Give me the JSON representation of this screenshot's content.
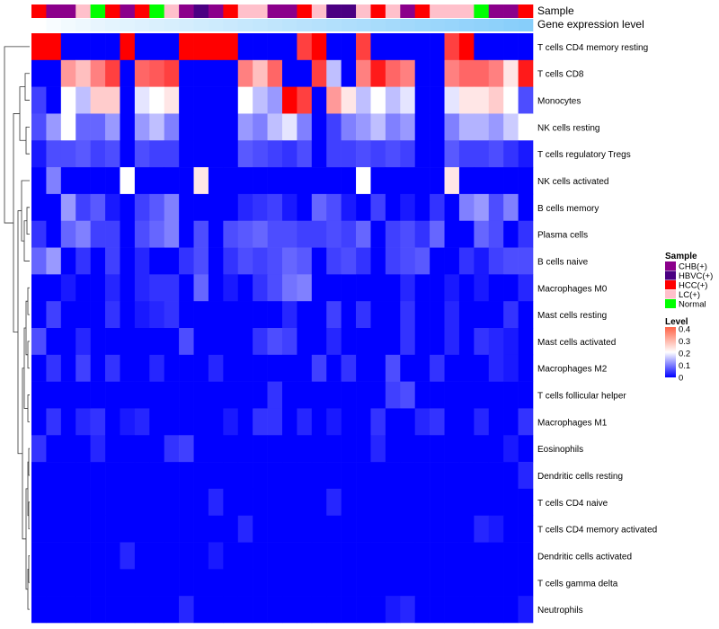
{
  "chart_data": {
    "type": "heatmap",
    "annotation_labels": {
      "sample": "Sample",
      "gene": "Gene expression level"
    },
    "rows": [
      "T cells CD4 memory resting",
      "T cells CD8",
      "Monocytes",
      "NK cells resting",
      "T cells regulatory  Tregs",
      "NK cells activated",
      "B cells memory",
      "Plasma cells",
      "B cells naive",
      "Macrophages M0",
      "Mast cells resting",
      "Mast cells activated",
      "Macrophages M2",
      "T cells follicular helper",
      "Macrophages M1",
      "Eosinophils",
      "Dendritic cells resting",
      "T cells CD4 naive",
      "T cells CD4 memory activated",
      "Dendritic cells activated",
      "T cells gamma delta",
      "Neutrophils"
    ],
    "sample_groups": [
      "HCC(+)",
      "CHB(+)",
      "CHB(+)",
      "LC(+)",
      "Normal",
      "HCC(+)",
      "CHB(+)",
      "HCC(+)",
      "Normal",
      "LC(+)",
      "CHB(+)",
      "HBVC(+)",
      "CHB(+)",
      "HCC(+)",
      "LC(+)",
      "LC(+)",
      "CHB(+)",
      "CHB(+)",
      "HCC(+)",
      "LC(+)",
      "HBVC(+)",
      "HBVC(+)",
      "LC(+)",
      "HCC(+)",
      "LC(+)",
      "CHB(+)",
      "HCC(+)",
      "LC(+)",
      "LC(+)",
      "LC(+)",
      "Normal",
      "CHB(+)",
      "CHB(+)",
      "HCC(+)"
    ],
    "gene_level_bar": [
      0.38,
      0.36,
      0.34,
      0.33,
      0.31,
      0.3,
      0.29,
      0.28,
      0.27,
      0.26,
      0.25,
      0.24,
      0.23,
      0.22,
      0.21,
      0.2,
      0.19,
      0.18,
      0.17,
      0.16,
      0.15,
      0.14,
      0.13,
      0.12,
      0.11,
      0.1,
      0.09,
      0.08,
      0.07,
      0.06,
      0.05,
      0.04,
      0.03,
      0.02
    ],
    "values": [
      [
        0.4,
        0.4,
        0.0,
        0.0,
        0.0,
        0.0,
        0.4,
        0.0,
        0.0,
        0.0,
        0.4,
        0.4,
        0.4,
        0.4,
        0.0,
        0.0,
        0.0,
        0.0,
        0.35,
        0.4,
        0.0,
        0.0,
        0.35,
        0.0,
        0.0,
        0.0,
        0.0,
        0.0,
        0.35,
        0.4,
        0.0,
        0.0,
        0.0,
        0.0
      ],
      [
        0.0,
        0.0,
        0.28,
        0.25,
        0.3,
        0.35,
        0.0,
        0.32,
        0.33,
        0.35,
        0.0,
        0.0,
        0.0,
        0.0,
        0.3,
        0.25,
        0.32,
        0.0,
        0.0,
        0.35,
        0.15,
        0.0,
        0.3,
        0.38,
        0.32,
        0.3,
        0.0,
        0.0,
        0.3,
        0.32,
        0.32,
        0.3,
        0.22,
        0.38
      ],
      [
        0.05,
        0.0,
        0.2,
        0.15,
        0.24,
        0.24,
        0.0,
        0.18,
        0.2,
        0.22,
        0.0,
        0.0,
        0.0,
        0.0,
        0.2,
        0.15,
        0.12,
        0.4,
        0.35,
        0.0,
        0.28,
        0.22,
        0.15,
        0.2,
        0.15,
        0.18,
        0.0,
        0.0,
        0.18,
        0.22,
        0.22,
        0.24,
        0.2,
        0.06
      ],
      [
        0.06,
        0.12,
        0.2,
        0.08,
        0.08,
        0.12,
        0.0,
        0.12,
        0.15,
        0.1,
        0.0,
        0.0,
        0.0,
        0.0,
        0.12,
        0.1,
        0.15,
        0.18,
        0.1,
        0.0,
        0.05,
        0.1,
        0.12,
        0.15,
        0.1,
        0.12,
        0.0,
        0.0,
        0.1,
        0.14,
        0.14,
        0.12,
        0.16,
        0.2
      ],
      [
        0.02,
        0.06,
        0.06,
        0.07,
        0.05,
        0.06,
        0.0,
        0.06,
        0.05,
        0.05,
        0.0,
        0.0,
        0.0,
        0.0,
        0.07,
        0.06,
        0.05,
        0.04,
        0.06,
        0.0,
        0.05,
        0.05,
        0.06,
        0.05,
        0.06,
        0.05,
        0.0,
        0.0,
        0.07,
        0.05,
        0.05,
        0.06,
        0.04,
        0.02
      ],
      [
        0.0,
        0.1,
        0.0,
        0.0,
        0.0,
        0.0,
        0.2,
        0.0,
        0.0,
        0.0,
        0.0,
        0.22,
        0.0,
        0.0,
        0.0,
        0.0,
        0.0,
        0.0,
        0.0,
        0.0,
        0.0,
        0.0,
        0.2,
        0.0,
        0.0,
        0.0,
        0.0,
        0.0,
        0.22,
        0.0,
        0.0,
        0.0,
        0.0,
        0.0
      ],
      [
        0.0,
        0.0,
        0.12,
        0.05,
        0.07,
        0.02,
        0.0,
        0.05,
        0.07,
        0.1,
        0.0,
        0.0,
        0.0,
        0.0,
        0.03,
        0.04,
        0.05,
        0.02,
        0.0,
        0.08,
        0.06,
        0.02,
        0.0,
        0.05,
        0.0,
        0.02,
        0.0,
        0.04,
        0.0,
        0.1,
        0.12,
        0.06,
        0.1,
        0.0
      ],
      [
        0.04,
        0.0,
        0.08,
        0.1,
        0.05,
        0.05,
        0.0,
        0.06,
        0.08,
        0.1,
        0.0,
        0.06,
        0.0,
        0.06,
        0.07,
        0.08,
        0.06,
        0.06,
        0.05,
        0.05,
        0.06,
        0.05,
        0.08,
        0.0,
        0.05,
        0.06,
        0.04,
        0.08,
        0.0,
        0.0,
        0.08,
        0.06,
        0.0,
        0.04
      ],
      [
        0.08,
        0.12,
        0.0,
        0.04,
        0.0,
        0.05,
        0.0,
        0.03,
        0.0,
        0.0,
        0.04,
        0.06,
        0.0,
        0.04,
        0.06,
        0.05,
        0.06,
        0.08,
        0.07,
        0.0,
        0.05,
        0.06,
        0.04,
        0.0,
        0.05,
        0.06,
        0.07,
        0.0,
        0.0,
        0.04,
        0.02,
        0.05,
        0.06,
        0.06
      ],
      [
        0.0,
        0.0,
        0.02,
        0.0,
        0.0,
        0.03,
        0.0,
        0.03,
        0.04,
        0.04,
        0.0,
        0.08,
        0.0,
        0.02,
        0.0,
        0.04,
        0.06,
        0.09,
        0.1,
        0.0,
        0.0,
        0.0,
        0.0,
        0.0,
        0.0,
        0.03,
        0.0,
        0.0,
        0.02,
        0.0,
        0.02,
        0.0,
        0.0,
        0.03
      ],
      [
        0.0,
        0.05,
        0.0,
        0.0,
        0.0,
        0.04,
        0.0,
        0.02,
        0.03,
        0.04,
        0.0,
        0.0,
        0.0,
        0.0,
        0.0,
        0.0,
        0.0,
        0.03,
        0.0,
        0.0,
        0.05,
        0.0,
        0.04,
        0.0,
        0.0,
        0.04,
        0.0,
        0.0,
        0.03,
        0.0,
        0.0,
        0.0,
        0.04,
        0.0
      ],
      [
        0.06,
        0.0,
        0.0,
        0.03,
        0.0,
        0.0,
        0.0,
        0.0,
        0.0,
        0.0,
        0.06,
        0.0,
        0.0,
        0.0,
        0.0,
        0.04,
        0.06,
        0.05,
        0.0,
        0.0,
        0.03,
        0.0,
        0.0,
        0.0,
        0.0,
        0.04,
        0.0,
        0.0,
        0.03,
        0.0,
        0.04,
        0.03,
        0.02,
        0.0
      ],
      [
        0.0,
        0.04,
        0.0,
        0.05,
        0.0,
        0.04,
        0.0,
        0.0,
        0.03,
        0.0,
        0.0,
        0.0,
        0.03,
        0.0,
        0.0,
        0.0,
        0.0,
        0.0,
        0.0,
        0.05,
        0.0,
        0.04,
        0.0,
        0.0,
        0.06,
        0.0,
        0.0,
        0.04,
        0.0,
        0.0,
        0.0,
        0.03,
        0.02,
        0.0
      ],
      [
        0.0,
        0.0,
        0.0,
        0.0,
        0.0,
        0.0,
        0.0,
        0.0,
        0.0,
        0.0,
        0.0,
        0.0,
        0.0,
        0.0,
        0.0,
        0.0,
        0.04,
        0.0,
        0.0,
        0.0,
        0.0,
        0.0,
        0.0,
        0.0,
        0.05,
        0.06,
        0.0,
        0.0,
        0.0,
        0.0,
        0.0,
        0.0,
        0.0,
        0.0
      ],
      [
        0.0,
        0.04,
        0.0,
        0.03,
        0.04,
        0.0,
        0.02,
        0.03,
        0.0,
        0.0,
        0.0,
        0.0,
        0.0,
        0.02,
        0.0,
        0.04,
        0.04,
        0.0,
        0.03,
        0.0,
        0.02,
        0.0,
        0.0,
        0.04,
        0.0,
        0.0,
        0.03,
        0.04,
        0.0,
        0.0,
        0.03,
        0.0,
        0.0,
        0.04
      ],
      [
        0.04,
        0.0,
        0.0,
        0.0,
        0.03,
        0.0,
        0.0,
        0.0,
        0.0,
        0.04,
        0.05,
        0.0,
        0.0,
        0.0,
        0.0,
        0.0,
        0.0,
        0.0,
        0.0,
        0.0,
        0.0,
        0.0,
        0.0,
        0.03,
        0.0,
        0.0,
        0.0,
        0.0,
        0.0,
        0.0,
        0.0,
        0.0,
        0.02,
        0.0
      ],
      [
        0.0,
        0.0,
        0.0,
        0.0,
        0.0,
        0.0,
        0.0,
        0.0,
        0.0,
        0.0,
        0.0,
        0.0,
        0.0,
        0.0,
        0.0,
        0.0,
        0.0,
        0.0,
        0.0,
        0.0,
        0.0,
        0.0,
        0.0,
        0.0,
        0.0,
        0.0,
        0.0,
        0.0,
        0.0,
        0.0,
        0.0,
        0.0,
        0.0,
        0.03
      ],
      [
        0.0,
        0.0,
        0.0,
        0.0,
        0.0,
        0.0,
        0.0,
        0.0,
        0.0,
        0.0,
        0.0,
        0.0,
        0.03,
        0.0,
        0.0,
        0.0,
        0.0,
        0.0,
        0.0,
        0.0,
        0.03,
        0.0,
        0.0,
        0.0,
        0.0,
        0.0,
        0.0,
        0.0,
        0.0,
        0.0,
        0.0,
        0.0,
        0.0,
        0.0
      ],
      [
        0.0,
        0.0,
        0.0,
        0.0,
        0.0,
        0.0,
        0.0,
        0.0,
        0.0,
        0.0,
        0.0,
        0.0,
        0.0,
        0.0,
        0.03,
        0.0,
        0.0,
        0.0,
        0.0,
        0.0,
        0.0,
        0.0,
        0.0,
        0.0,
        0.0,
        0.0,
        0.0,
        0.0,
        0.0,
        0.0,
        0.03,
        0.02,
        0.0,
        0.0
      ],
      [
        0.0,
        0.0,
        0.0,
        0.0,
        0.0,
        0.0,
        0.03,
        0.0,
        0.0,
        0.0,
        0.0,
        0.0,
        0.02,
        0.0,
        0.0,
        0.0,
        0.0,
        0.0,
        0.0,
        0.0,
        0.0,
        0.0,
        0.0,
        0.0,
        0.0,
        0.0,
        0.0,
        0.0,
        0.0,
        0.0,
        0.0,
        0.0,
        0.0,
        0.0
      ],
      [
        0.0,
        0.0,
        0.0,
        0.0,
        0.0,
        0.0,
        0.0,
        0.0,
        0.0,
        0.0,
        0.0,
        0.0,
        0.0,
        0.0,
        0.0,
        0.0,
        0.0,
        0.0,
        0.0,
        0.0,
        0.0,
        0.0,
        0.0,
        0.0,
        0.0,
        0.0,
        0.0,
        0.0,
        0.0,
        0.0,
        0.0,
        0.0,
        0.0,
        0.0
      ],
      [
        0.0,
        0.0,
        0.0,
        0.0,
        0.0,
        0.0,
        0.0,
        0.0,
        0.0,
        0.0,
        0.03,
        0.0,
        0.0,
        0.0,
        0.0,
        0.0,
        0.0,
        0.0,
        0.0,
        0.0,
        0.0,
        0.0,
        0.0,
        0.0,
        0.02,
        0.03,
        0.0,
        0.0,
        0.0,
        0.0,
        0.0,
        0.0,
        0.0,
        0.02
      ]
    ],
    "legend": {
      "sample_title": "Sample",
      "sample_entries": [
        {
          "label": "CHB(+)",
          "color": "#8B008B"
        },
        {
          "label": "HBVC(+)",
          "color": "#4B0082"
        },
        {
          "label": "HCC(+)",
          "color": "#FF0000"
        },
        {
          "label": "LC(+)",
          "color": "#FFC0CB"
        },
        {
          "label": "Normal",
          "color": "#00FF00"
        }
      ],
      "level_title": "Level",
      "level_ticks": [
        "0.4",
        "0.3",
        "0.2",
        "0.1",
        "0"
      ],
      "level_tick_values": [
        0.4,
        0.3,
        0.2,
        0.1,
        0.0
      ]
    },
    "color_scale": {
      "low": "#0000FF",
      "mid": "#FFFFFF",
      "high": "#FF0000",
      "min": 0.0,
      "mid_value": 0.2,
      "max": 0.4
    },
    "gene_bar_colors": {
      "low": "#87CEFA",
      "high": "#FFFFFF"
    }
  }
}
